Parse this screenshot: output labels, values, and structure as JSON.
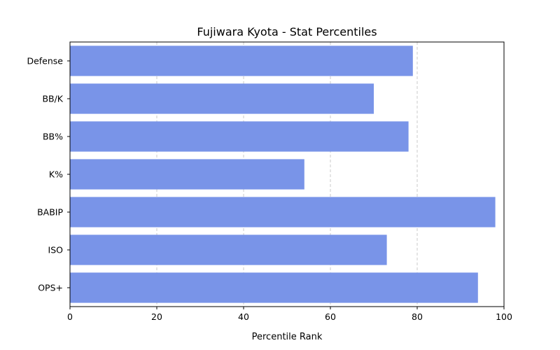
{
  "chart_data": {
    "type": "bar",
    "orientation": "horizontal",
    "title": "Fujiwara Kyota - Stat Percentiles",
    "xlabel": "Percentile Rank",
    "ylabel": "",
    "categories": [
      "OPS+",
      "ISO",
      "BABIP",
      "K%",
      "BB%",
      "BB/K",
      "Defense"
    ],
    "values": [
      94,
      73,
      98,
      54,
      78,
      70,
      79
    ],
    "xlim": [
      0,
      100
    ],
    "xticks": [
      0,
      20,
      40,
      60,
      80,
      100
    ],
    "grid": "x-dashed",
    "bar_color": "#7994e8",
    "grid_color": "#c8c8c8"
  }
}
